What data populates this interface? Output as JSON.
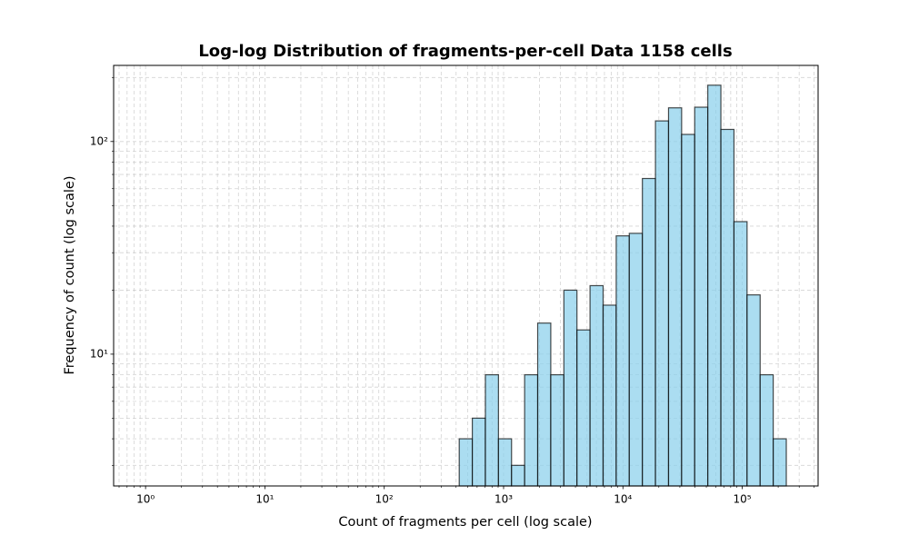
{
  "chart_data": {
    "type": "histogram",
    "title": "Log-log Distribution of fragments-per-cell Data 1158 cells",
    "xlabel": "Count of fragments per cell (log scale)",
    "ylabel": "Frequency of count (log scale)",
    "bins": [
      425,
      547,
      704,
      906,
      1166,
      1501,
      1931,
      2486,
      3201,
      4119,
      5302,
      6824,
      8785,
      11306,
      14555,
      18732,
      24114,
      31036,
      39950,
      51426,
      66206,
      85210,
      109700,
      141200,
      181700,
      233900
    ],
    "values": [
      4,
      5,
      8,
      4,
      3,
      8,
      14,
      8,
      20,
      13,
      21,
      17,
      36,
      37,
      67,
      125,
      144,
      108,
      145,
      184,
      114,
      42,
      19,
      8,
      4
    ],
    "color": "#87ceeb",
    "edgecolor": "#000000",
    "alpha": 0.7,
    "xscale": "log",
    "yscale": "log",
    "xlim": [
      0.54,
      432000
    ],
    "ylim": [
      2.4,
      228
    ],
    "xticks": [
      {
        "value": 1,
        "label": "10⁰"
      },
      {
        "value": 10,
        "label": "10¹"
      },
      {
        "value": 100,
        "label": "10²"
      },
      {
        "value": 1000,
        "label": "10³"
      },
      {
        "value": 10000,
        "label": "10⁴"
      },
      {
        "value": 100000,
        "label": "10⁵"
      }
    ],
    "yticks": [
      {
        "value": 10,
        "label": "10¹"
      },
      {
        "value": 100,
        "label": "10²"
      }
    ],
    "grid": true
  }
}
